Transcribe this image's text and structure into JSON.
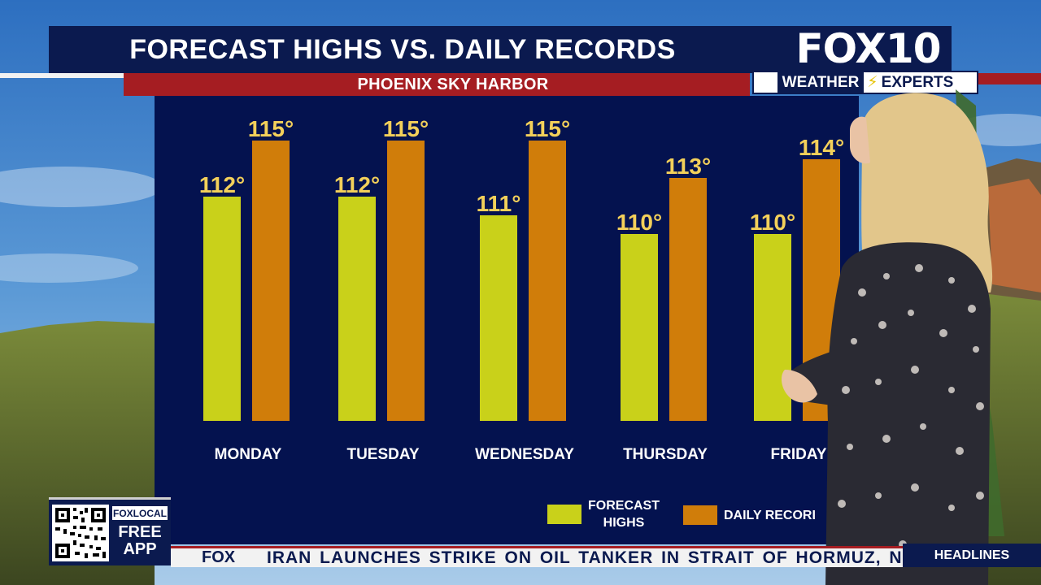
{
  "header": {
    "title": "FORECAST HIGHS VS. DAILY RECORDS",
    "subtitle": "PHOENIX SKY HARBOR"
  },
  "logo": {
    "brand": "FOX10",
    "weather": "WEATHER",
    "experts": "EXPERTS"
  },
  "chart_data": {
    "type": "bar",
    "title": "FORECAST HIGHS VS. DAILY RECORDS",
    "subtitle": "PHOENIX SKY HARBOR",
    "categories": [
      "MONDAY",
      "TUESDAY",
      "WEDNESDAY",
      "THURSDAY",
      "FRIDAY"
    ],
    "series": [
      {
        "name": "FORECAST HIGHS",
        "values": [
          112,
          112,
          111,
          110,
          110
        ],
        "color": "#c9d11a"
      },
      {
        "name": "DAILY RECORDS",
        "values": [
          115,
          115,
          115,
          113,
          114
        ],
        "color": "#d07d0a"
      }
    ],
    "value_suffix": "°",
    "label_color": "#f3d05a",
    "grid": false,
    "legend_position": "bottom-right"
  },
  "legend": {
    "forecast_label_1": "FORECAST",
    "forecast_label_2": "HIGHS",
    "record_label": "DAILY RECORI"
  },
  "app_promo": {
    "brand": "FOXLOCAL",
    "line1": "FREE",
    "line2": "APP"
  },
  "ticker": {
    "brand": "FOX",
    "text": "IRAN LAUNCHES STRIKE ON OIL TANKER IN STRAIT OF HORMUZ, NO IN",
    "headlines_label": "HEADLINES"
  }
}
